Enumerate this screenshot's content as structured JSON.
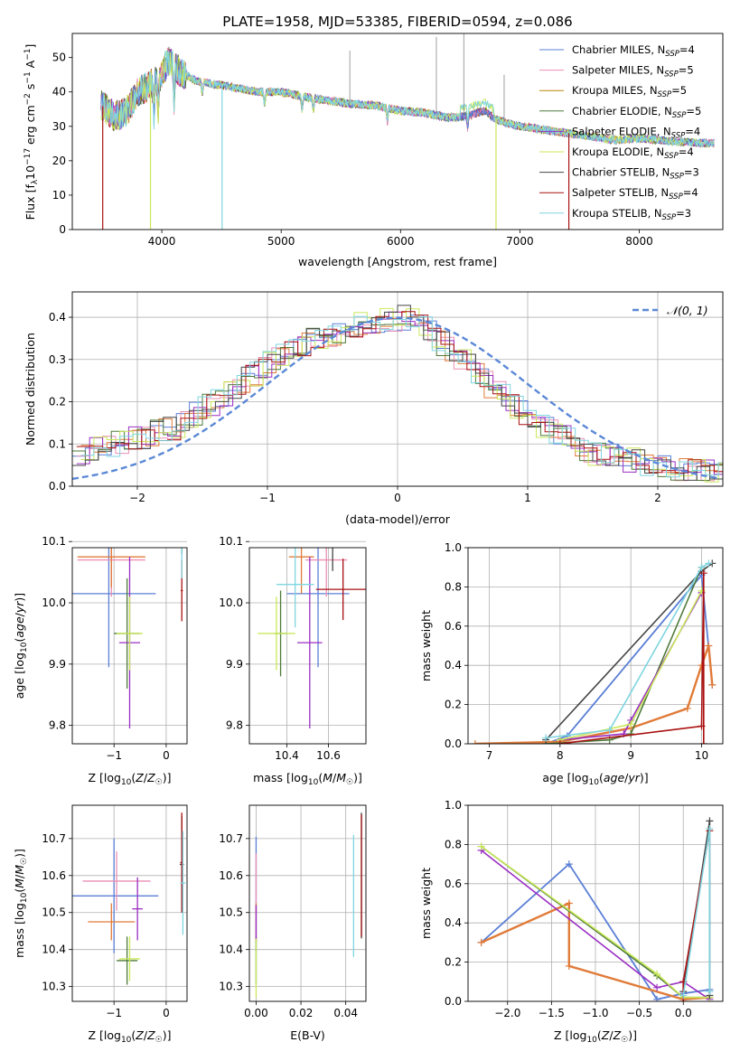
{
  "figure": {
    "title": "PLATE=1958, MJD=53385, FIBERID=0594, z=0.086",
    "colors": {
      "c1": "#5b7fd6",
      "c2": "#ea8fb4",
      "c3": "#b8860b",
      "c4": "#4e7a3a",
      "c5": "#9a2fc2",
      "c6": "#c9e85a",
      "c7": "#444444",
      "c8": "#aa1111",
      "c9": "#7fd5e0",
      "salp_miles": "#e07b39"
    }
  },
  "chart_data": [
    {
      "id": "spectrum",
      "type": "line",
      "title": "PLATE=1958, MJD=53385, FIBERID=0594, z=0.086",
      "xlabel": "wavelength [Angstrom, rest frame]",
      "ylabel": "Flux [fλ10⁻¹⁷ erg cm⁻² s⁻¹ A⁻¹]",
      "xlim": [
        3250,
        8700
      ],
      "ylim": [
        0,
        57
      ],
      "xticks": [
        4000,
        5000,
        6000,
        7000,
        8000
      ],
      "yticks": [
        0,
        10,
        20,
        30,
        40,
        50
      ],
      "grid": false,
      "legend_position": "top-right",
      "series": [
        {
          "name": "Chabrier MILES, NSSP=4",
          "color": "#5b7fd6"
        },
        {
          "name": "Salpeter MILES, NSSP=5",
          "color": "#ea8fb4"
        },
        {
          "name": "Kroupa MILES, NSSP=5",
          "color": "#b8860b"
        },
        {
          "name": "Chabrier ELODIE, NSSP=5",
          "color": "#4e7a3a"
        },
        {
          "name": "Salpeter ELODIE, NSSP=4",
          "color": "#9a2fc2"
        },
        {
          "name": "Kroupa ELODIE, NSSP=4",
          "color": "#c9e85a"
        },
        {
          "name": "Chabrier STELIB, NSSP=3",
          "color": "#444444"
        },
        {
          "name": "Salpeter STELIB, NSSP=4",
          "color": "#aa1111"
        },
        {
          "name": "Kroupa STELIB, NSSP=3",
          "color": "#7fd5e0"
        }
      ],
      "continuum": {
        "x": [
          3500,
          3600,
          3700,
          3800,
          3900,
          4000,
          4050,
          4150,
          4300,
          4500,
          4800,
          5000,
          5200,
          5400,
          5600,
          5800,
          6000,
          6200,
          6400,
          6550,
          6700,
          6800,
          7000,
          7200,
          7500,
          7800,
          8000,
          8300,
          8700
        ],
        "y": [
          36,
          33,
          34,
          40,
          42,
          45,
          49,
          46,
          43,
          42,
          40,
          40,
          38.5,
          37.5,
          36.5,
          36,
          34.5,
          34,
          32.5,
          33,
          34.5,
          32,
          30,
          29,
          27.5,
          26,
          26.5,
          25.5,
          25
        ]
      }
    },
    {
      "id": "residuals",
      "type": "line",
      "xlabel": "(data-model)/error",
      "ylabel": "Normed distribution",
      "xlim": [
        -2.5,
        2.5
      ],
      "ylim": [
        0,
        0.46
      ],
      "xticks": [
        -2,
        -1,
        0,
        1,
        2
      ],
      "yticks": [
        0.0,
        0.1,
        0.2,
        0.3,
        0.4
      ],
      "grid": true,
      "legend_position": "top-right",
      "legend": [
        "𝒩(0, 1)"
      ],
      "hist_bin_width": 0.1,
      "hist_model": {
        "x": [
          -2.5,
          -1.7,
          -1.3,
          -0.8,
          -0.2,
          0.1,
          0.5,
          1.0,
          1.5,
          2.0,
          2.5
        ],
        "y": [
          0.07,
          0.14,
          0.22,
          0.33,
          0.39,
          0.4,
          0.3,
          0.16,
          0.08,
          0.05,
          0.03
        ]
      },
      "normal": {
        "mu": 0,
        "sigma": 1
      }
    },
    {
      "id": "age-vs-Z",
      "type": "scatter",
      "xlabel": "Z [log10(Z/Z☉)]",
      "ylabel": "age  [log10(age/yr)]",
      "xlim": [
        -1.8,
        0.4
      ],
      "ylim": [
        9.77,
        10.09
      ],
      "xticks": [
        -1,
        0
      ],
      "yticks": [
        9.8,
        9.9,
        10.0,
        10.1
      ],
      "grid": true,
      "points": [
        {
          "x": -1.1,
          "y": 10.015,
          "xerr": 0.9,
          "yerr": 0.12,
          "color": "#5b7fd6"
        },
        {
          "x": -1.05,
          "y": 10.07,
          "xerr": 0.65,
          "yerr": 0.06,
          "color": "#ea8fb4"
        },
        {
          "x": -1.05,
          "y": 10.075,
          "xerr": 0.65,
          "yerr": 0.05,
          "color": "#e07b39"
        },
        {
          "x": -0.75,
          "y": 9.95,
          "xerr": 0.25,
          "yerr": 0.09,
          "color": "#4e7a3a"
        },
        {
          "x": -0.7,
          "y": 9.935,
          "xerr": 0.2,
          "yerr": 0.14,
          "color": "#9a2fc2"
        },
        {
          "x": -0.7,
          "y": 9.95,
          "xerr": 0.25,
          "yerr": 0.06,
          "color": "#c9e85a"
        },
        {
          "x": 0.3,
          "y": 10.11,
          "xerr": 0.05,
          "yerr": 0.03,
          "color": "#444444"
        },
        {
          "x": 0.3,
          "y": 10.02,
          "xerr": 0.02,
          "yerr": 0.05,
          "color": "#aa1111"
        },
        {
          "x": 0.3,
          "y": 10.1,
          "xerr": 0.03,
          "yerr": 0.06,
          "color": "#7fd5e0"
        }
      ]
    },
    {
      "id": "age-vs-mass",
      "type": "scatter",
      "xlabel": "mass [log10(M/M☉)]",
      "ylabel": "",
      "xlim": [
        10.22,
        10.78
      ],
      "ylim": [
        9.77,
        10.09
      ],
      "xticks": [
        10.4,
        10.6
      ],
      "yticks": [
        9.8,
        9.9,
        10.0,
        10.1
      ],
      "grid": true,
      "points": [
        {
          "x": 10.55,
          "y": 10.015,
          "xerr": 0.15,
          "yerr": 0.12,
          "color": "#5b7fd6"
        },
        {
          "x": 10.59,
          "y": 10.07,
          "xerr": 0.1,
          "yerr": 0.06,
          "color": "#ea8fb4"
        },
        {
          "x": 10.47,
          "y": 10.075,
          "xerr": 0.06,
          "yerr": 0.06,
          "color": "#e07b39"
        },
        {
          "x": 10.37,
          "y": 9.95,
          "xerr": 0.03,
          "yerr": 0.07,
          "color": "#4e7a3a"
        },
        {
          "x": 10.51,
          "y": 9.935,
          "xerr": 0.06,
          "yerr": 0.14,
          "color": "#9a2fc2"
        },
        {
          "x": 10.35,
          "y": 9.95,
          "xerr": 0.09,
          "yerr": 0.06,
          "color": "#c9e85a"
        },
        {
          "x": 10.62,
          "y": 10.112,
          "xerr": 0.17,
          "yerr": 0.06,
          "color": "#444444"
        },
        {
          "x": 10.67,
          "y": 10.022,
          "xerr": 0.13,
          "yerr": 0.05,
          "color": "#aa1111"
        },
        {
          "x": 10.44,
          "y": 10.03,
          "xerr": 0.09,
          "yerr": 0.07,
          "color": "#7fd5e0"
        }
      ]
    },
    {
      "id": "weight-vs-age",
      "type": "line",
      "xlabel": "age  [log10(age/yr)]",
      "ylabel": "mass weight",
      "xlim": [
        6.7,
        10.3
      ],
      "ylim": [
        0.0,
        1.0
      ],
      "xticks": [
        7,
        8,
        9,
        10
      ],
      "yticks": [
        0.0,
        0.2,
        0.4,
        0.6,
        0.8,
        1.0
      ],
      "grid": true,
      "series": [
        {
          "color": "#5b7fd6",
          "x": [
            7.8,
            8.1,
            10.0,
            10.15
          ],
          "y": [
            0.0,
            0.04,
            0.86,
            0.3
          ]
        },
        {
          "color": "#e07b39",
          "x": [
            6.8,
            8.0,
            9.0,
            9.8,
            10.0,
            10.1,
            10.15
          ],
          "y": [
            0.0,
            0.01,
            0.08,
            0.18,
            0.4,
            0.5,
            0.3
          ]
        },
        {
          "color": "#4e7a3a",
          "x": [
            7.8,
            8.7,
            9.0,
            10.0
          ],
          "y": [
            0.0,
            0.02,
            0.05,
            0.9
          ]
        },
        {
          "color": "#9a2fc2",
          "x": [
            8.0,
            8.9,
            9.0,
            10.0
          ],
          "y": [
            0.02,
            0.05,
            0.12,
            0.77
          ]
        },
        {
          "color": "#c9e85a",
          "x": [
            8.0,
            9.0,
            10.0
          ],
          "y": [
            0.02,
            0.1,
            0.78
          ]
        },
        {
          "color": "#444444",
          "x": [
            7.8,
            10.0,
            10.15
          ],
          "y": [
            0.02,
            0.88,
            0.92
          ]
        },
        {
          "color": "#aa1111",
          "x": [
            8.0,
            10.0,
            10.03,
            10.03
          ],
          "y": [
            0.0,
            0.09,
            0.87,
            0.0
          ]
        },
        {
          "color": "#7fd5e0",
          "x": [
            7.8,
            8.7,
            10.0,
            10.1
          ],
          "y": [
            0.03,
            0.07,
            0.9,
            0.92
          ]
        }
      ]
    },
    {
      "id": "mass-vs-Z",
      "type": "scatter",
      "xlabel": "Z [log10(Z/Z☉)]",
      "ylabel": "mass [log10(M/M☉)]",
      "xlim": [
        -1.8,
        0.4
      ],
      "ylim": [
        10.26,
        10.79
      ],
      "xticks": [
        -1,
        0
      ],
      "yticks": [
        10.3,
        10.4,
        10.5,
        10.6,
        10.7
      ],
      "grid": true,
      "points": [
        {
          "x": -1.0,
          "y": 10.545,
          "xerr": 0.85,
          "yerr": 0.155,
          "color": "#5b7fd6"
        },
        {
          "x": -0.95,
          "y": 10.585,
          "xerr": 0.65,
          "yerr": 0.08,
          "color": "#ea8fb4"
        },
        {
          "x": -1.05,
          "y": 10.475,
          "xerr": 0.45,
          "yerr": 0.05,
          "color": "#e07b39"
        },
        {
          "x": -0.75,
          "y": 10.37,
          "xerr": 0.2,
          "yerr": 0.065,
          "color": "#4e7a3a"
        },
        {
          "x": -0.55,
          "y": 10.51,
          "xerr": 0.1,
          "yerr": 0.085,
          "color": "#9a2fc2"
        },
        {
          "x": -0.7,
          "y": 10.375,
          "xerr": 0.2,
          "yerr": 0.06,
          "color": "#c9e85a"
        },
        {
          "x": 0.3,
          "y": 10.63,
          "xerr": 0.04,
          "yerr": 0.13,
          "color": "#444444"
        },
        {
          "x": 0.3,
          "y": 10.635,
          "xerr": 0.03,
          "yerr": 0.135,
          "color": "#aa1111"
        },
        {
          "x": 0.32,
          "y": 10.58,
          "xerr": 0.05,
          "yerr": 0.14,
          "color": "#7fd5e0"
        }
      ]
    },
    {
      "id": "mass-vs-ebv",
      "type": "scatter",
      "xlabel": "E(B-V)",
      "ylabel": "",
      "xlim": [
        -0.003,
        0.049
      ],
      "ylim": [
        10.26,
        10.79
      ],
      "xticks": [
        0.0,
        0.02,
        0.04
      ],
      "xticklabels": [
        "0.00",
        "0.02",
        "0.04"
      ],
      "yticks": [
        10.3,
        10.4,
        10.5,
        10.6,
        10.7
      ],
      "grid": true,
      "points": [
        {
          "x": 0.0,
          "y": 10.55,
          "xerr": 0,
          "yerr": 0.155,
          "color": "#5b7fd6"
        },
        {
          "x": 0.0,
          "y": 10.58,
          "xerr": 0,
          "yerr": 0.08,
          "color": "#ea8fb4"
        },
        {
          "x": 0.0,
          "y": 10.475,
          "xerr": 0,
          "yerr": 0.05,
          "color": "#e07b39"
        },
        {
          "x": 0.0,
          "y": 10.37,
          "xerr": 0,
          "yerr": 0.065,
          "color": "#4e7a3a"
        },
        {
          "x": 0.0,
          "y": 10.47,
          "xerr": 0,
          "yerr": 0.05,
          "color": "#9a2fc2"
        },
        {
          "x": 0.0,
          "y": 10.35,
          "xerr": 0,
          "yerr": 0.08,
          "color": "#c9e85a"
        },
        {
          "x": 0.047,
          "y": 10.6,
          "xerr": 0,
          "yerr": 0.17,
          "color": "#444444"
        },
        {
          "x": 0.047,
          "y": 10.6,
          "xerr": 0,
          "yerr": 0.165,
          "color": "#aa1111"
        },
        {
          "x": 0.0435,
          "y": 10.545,
          "xerr": 0,
          "yerr": 0.165,
          "color": "#7fd5e0"
        }
      ]
    },
    {
      "id": "weight-vs-Z",
      "type": "line",
      "xlabel": "Z [log10(Z/Z☉)]",
      "ylabel": "mass weight",
      "xlim": [
        -2.45,
        0.45
      ],
      "ylim": [
        0.0,
        1.0
      ],
      "xticks": [
        -2.0,
        -1.5,
        -1.0,
        -0.5,
        0.0
      ],
      "xticklabels": [
        "−2.0",
        "−1.5",
        "−1.0",
        "−0.5",
        "0.0"
      ],
      "yticks": [
        0.0,
        0.2,
        0.4,
        0.6,
        0.8,
        1.0
      ],
      "grid": true,
      "series": [
        {
          "color": "#5b7fd6",
          "x": [
            -2.3,
            -1.3,
            -0.3,
            0.0,
            0.3
          ],
          "y": [
            0.3,
            0.7,
            0.01,
            0.04,
            0.06
          ]
        },
        {
          "color": "#e07b39",
          "x": [
            -2.3,
            -1.3,
            -1.3,
            0.0,
            0.3
          ],
          "y": [
            0.3,
            0.5,
            0.18,
            0.01,
            0.02
          ]
        },
        {
          "color": "#4e7a3a",
          "x": [
            -2.3,
            -0.3,
            0.0,
            0.3
          ],
          "y": [
            0.79,
            0.13,
            0.02,
            0.02
          ]
        },
        {
          "color": "#9a2fc2",
          "x": [
            -2.3,
            -0.3,
            0.0,
            0.3
          ],
          "y": [
            0.77,
            0.07,
            0.1,
            0.01
          ]
        },
        {
          "color": "#c9e85a",
          "x": [
            -2.3,
            -0.3,
            0.0,
            0.3
          ],
          "y": [
            0.79,
            0.14,
            0.02,
            0.02
          ]
        },
        {
          "color": "#444444",
          "x": [
            0.0,
            0.3,
            0.3
          ],
          "y": [
            0.05,
            0.92,
            0.03
          ]
        },
        {
          "color": "#aa1111",
          "x": [
            0.0,
            0.0,
            0.3
          ],
          "y": [
            0.0,
            0.1,
            0.87
          ]
        },
        {
          "color": "#7fd5e0",
          "x": [
            0.0,
            0.3,
            0.3
          ],
          "y": [
            0.03,
            0.88,
            0.05
          ]
        }
      ]
    }
  ]
}
